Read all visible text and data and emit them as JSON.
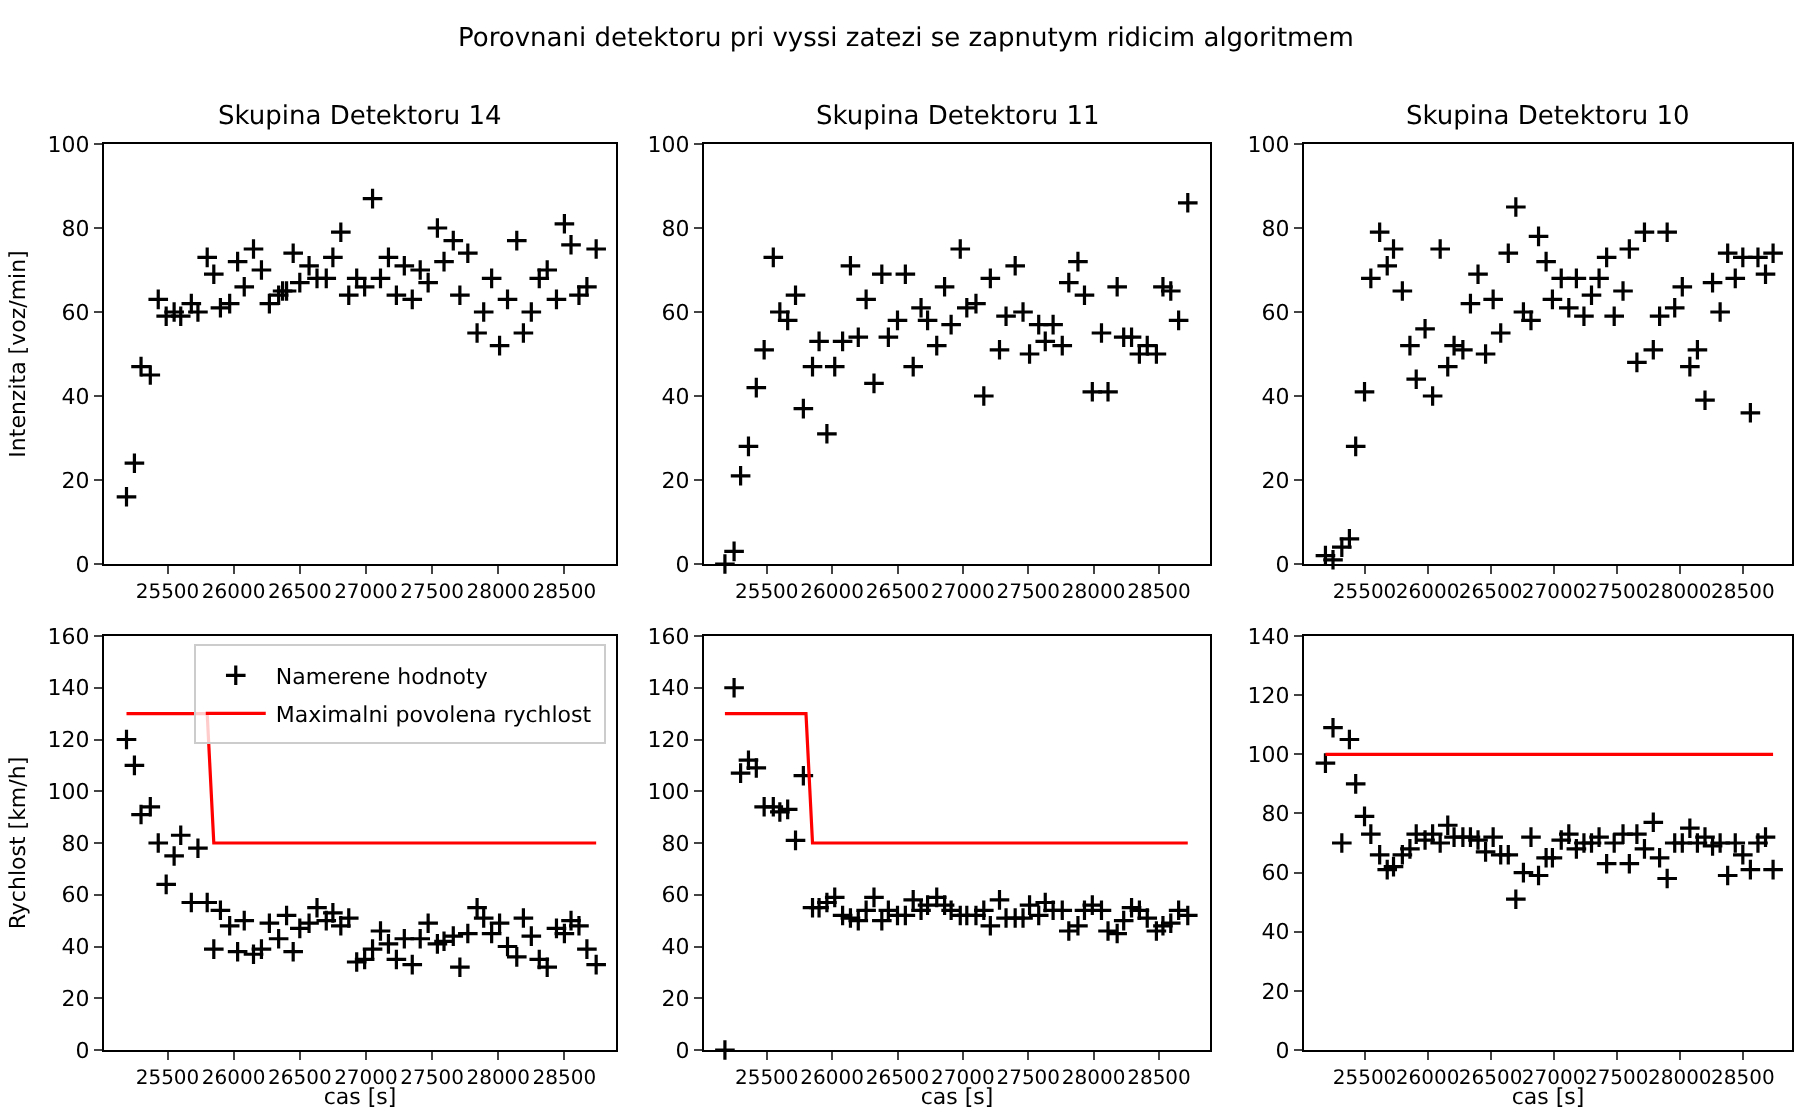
{
  "chart_data": [
    {
      "type": "scatter",
      "title": "Skupina Detektoru 14",
      "ylabel": "Intenzita [voz/min]",
      "annotations": [
        "Porovnani detektoru pri vyssi zatezi se zapnutym ridicim algoritmem"
      ],
      "xlim": [
        25020,
        28890
      ],
      "xticks": [
        25500,
        26000,
        26500,
        27000,
        27500,
        28000,
        28500
      ],
      "ylim": [
        0,
        100
      ],
      "yticks": [
        0,
        20,
        40,
        60,
        80,
        100
      ],
      "legend": false,
      "marker": "cross",
      "series": [
        {
          "color": "#000000",
          "x": [
            25190,
            25250,
            25300,
            25370,
            25430,
            25490,
            25550,
            25600,
            25680,
            25730,
            25800,
            25850,
            25900,
            25970,
            26030,
            26080,
            26150,
            26210,
            26270,
            26340,
            26370,
            26400,
            26450,
            26500,
            26570,
            26630,
            26700,
            26750,
            26810,
            26870,
            26930,
            26990,
            27050,
            27110,
            27170,
            27230,
            27290,
            27350,
            27410,
            27470,
            27540,
            27590,
            27660,
            27710,
            27770,
            27840,
            27890,
            27950,
            28010,
            28070,
            28140,
            28190,
            28250,
            28310,
            28370,
            28440,
            28500,
            28550,
            28610,
            28670,
            28740
          ],
          "values": [
            16,
            24,
            47,
            45,
            63,
            59,
            60,
            59,
            62,
            60,
            73,
            69,
            61,
            62,
            72,
            66,
            75,
            70,
            62,
            64,
            65,
            65,
            74,
            67,
            71,
            68,
            68,
            73,
            79,
            64,
            68,
            66,
            87,
            68,
            73,
            64,
            71,
            63,
            70,
            67,
            80,
            72,
            77,
            64,
            74,
            55,
            60,
            68,
            52,
            63,
            77,
            55,
            60,
            68,
            70,
            63,
            81,
            76,
            64,
            66,
            75
          ]
        }
      ]
    },
    {
      "type": "scatter",
      "title": "Skupina Detektoru 11",
      "xlim": [
        25020,
        28890
      ],
      "xticks": [
        25500,
        26000,
        26500,
        27000,
        27500,
        28000,
        28500
      ],
      "ylim": [
        0,
        100
      ],
      "yticks": [
        0,
        20,
        40,
        60,
        80,
        100
      ],
      "legend": false,
      "marker": "cross",
      "series": [
        {
          "color": "#000000",
          "x": [
            25180,
            25250,
            25300,
            25360,
            25420,
            25480,
            25550,
            25600,
            25660,
            25720,
            25780,
            25850,
            25900,
            25960,
            26020,
            26080,
            26140,
            26200,
            26260,
            26320,
            26380,
            26430,
            26500,
            26560,
            26620,
            26680,
            26730,
            26800,
            26860,
            26910,
            26980,
            27030,
            27100,
            27160,
            27210,
            27280,
            27330,
            27400,
            27460,
            27510,
            27580,
            27630,
            27690,
            27760,
            27810,
            27880,
            27930,
            27990,
            28060,
            28110,
            28180,
            28230,
            28290,
            28350,
            28410,
            28480,
            28530,
            28590,
            28650,
            28720
          ],
          "values": [
            0,
            3,
            21,
            28,
            42,
            51,
            73,
            60,
            58,
            64,
            37,
            47,
            53,
            31,
            47,
            53,
            71,
            54,
            63,
            43,
            69,
            54,
            58,
            69,
            47,
            61,
            58,
            52,
            66,
            57,
            75,
            61,
            62,
            40,
            68,
            51,
            59,
            71,
            60,
            50,
            57,
            53,
            57,
            52,
            67,
            72,
            64,
            41,
            55,
            41,
            66,
            54,
            54,
            50,
            52,
            50,
            66,
            65,
            58,
            86
          ]
        }
      ]
    },
    {
      "type": "scatter",
      "title": "Skupina Detektoru 10",
      "xlim": [
        25020,
        28890
      ],
      "xticks": [
        25500,
        26000,
        26500,
        27000,
        27500,
        28000,
        28500
      ],
      "ylim": [
        0,
        100
      ],
      "yticks": [
        0,
        20,
        40,
        60,
        80,
        100
      ],
      "legend": false,
      "marker": "cross",
      "series": [
        {
          "color": "#000000",
          "x": [
            25190,
            25250,
            25320,
            25380,
            25430,
            25500,
            25550,
            25620,
            25680,
            25730,
            25800,
            25860,
            25910,
            25980,
            26040,
            26100,
            26160,
            26210,
            26280,
            26340,
            26400,
            26460,
            26520,
            26580,
            26640,
            26700,
            26760,
            26820,
            26880,
            26940,
            26990,
            27060,
            27120,
            27180,
            27240,
            27300,
            27360,
            27420,
            27480,
            27550,
            27600,
            27660,
            27720,
            27790,
            27840,
            27900,
            27960,
            28020,
            28080,
            28140,
            28200,
            28260,
            28320,
            28380,
            28440,
            28500,
            28560,
            28620,
            28680,
            28740
          ],
          "values": [
            2,
            1,
            4,
            6,
            28,
            41,
            68,
            79,
            71,
            75,
            65,
            52,
            44,
            56,
            40,
            75,
            47,
            52,
            51,
            62,
            69,
            50,
            63,
            55,
            74,
            85,
            60,
            58,
            78,
            72,
            63,
            68,
            61,
            68,
            59,
            64,
            68,
            73,
            59,
            65,
            75,
            48,
            79,
            51,
            59,
            79,
            61,
            66,
            47,
            51,
            39,
            67,
            60,
            74,
            68,
            73,
            36,
            73,
            69,
            74
          ]
        }
      ]
    },
    {
      "type": "scatter",
      "xlabel": "cas [s]",
      "ylabel": "Rychlost [km/h]",
      "xlim": [
        25020,
        28890
      ],
      "xticks": [
        25500,
        26000,
        26500,
        27000,
        27500,
        28000,
        28500
      ],
      "ylim": [
        0,
        160
      ],
      "yticks": [
        0,
        20,
        40,
        60,
        80,
        100,
        120,
        140,
        160
      ],
      "legend": "top right",
      "marker": "cross",
      "series": [
        {
          "name": "Namerene hodnoty",
          "color": "#000000",
          "x": [
            25190,
            25250,
            25300,
            25370,
            25430,
            25490,
            25550,
            25600,
            25680,
            25730,
            25800,
            25850,
            25900,
            25970,
            26030,
            26080,
            26150,
            26210,
            26270,
            26340,
            26400,
            26450,
            26500,
            26570,
            26630,
            26700,
            26750,
            26810,
            26870,
            26930,
            26990,
            27050,
            27110,
            27170,
            27230,
            27290,
            27350,
            27410,
            27470,
            27540,
            27590,
            27660,
            27710,
            27770,
            27840,
            27890,
            27950,
            28010,
            28070,
            28140,
            28190,
            28250,
            28310,
            28370,
            28440,
            28500,
            28550,
            28610,
            28670,
            28740
          ],
          "values": [
            120,
            110,
            91,
            94,
            80,
            64,
            75,
            83,
            57,
            78,
            57,
            39,
            54,
            48,
            38,
            50,
            37,
            39,
            49,
            43,
            52,
            38,
            47,
            49,
            55,
            50,
            53,
            48,
            51,
            34,
            35,
            39,
            46,
            41,
            35,
            43,
            33,
            43,
            49,
            41,
            42,
            44,
            32,
            45,
            55,
            51,
            45,
            49,
            40,
            36,
            51,
            44,
            35,
            32,
            47,
            45,
            50,
            48,
            39,
            33
          ]
        },
        {
          "name": "Maximalni povolena rychlost",
          "type": "line",
          "marker": "none",
          "color": "#ff0000",
          "line_style": "solid",
          "x": [
            25190,
            25800,
            25850,
            28740
          ],
          "values": [
            130,
            130,
            80,
            80
          ]
        }
      ]
    },
    {
      "type": "scatter",
      "xlabel": "cas [s]",
      "xlim": [
        25020,
        28890
      ],
      "xticks": [
        25500,
        26000,
        26500,
        27000,
        27500,
        28000,
        28500
      ],
      "ylim": [
        0,
        160
      ],
      "yticks": [
        0,
        20,
        40,
        60,
        80,
        100,
        120,
        140,
        160
      ],
      "legend": false,
      "marker": "cross",
      "series": [
        {
          "color": "#000000",
          "x": [
            25180,
            25250,
            25300,
            25360,
            25420,
            25480,
            25550,
            25600,
            25660,
            25720,
            25780,
            25850,
            25900,
            25960,
            26020,
            26080,
            26140,
            26200,
            26260,
            26320,
            26380,
            26430,
            26500,
            26560,
            26620,
            26680,
            26730,
            26800,
            26860,
            26910,
            26980,
            27030,
            27100,
            27160,
            27210,
            27280,
            27330,
            27400,
            27460,
            27510,
            27580,
            27630,
            27690,
            27760,
            27810,
            27880,
            27930,
            27990,
            28060,
            28110,
            28180,
            28230,
            28290,
            28350,
            28410,
            28480,
            28530,
            28590,
            28650,
            28720
          ],
          "values": [
            0,
            140,
            107,
            112,
            109,
            94,
            94,
            92,
            93,
            81,
            106,
            55,
            55,
            57,
            59,
            52,
            51,
            50,
            54,
            59,
            50,
            54,
            52,
            52,
            58,
            54,
            56,
            59,
            56,
            54,
            52,
            52,
            52,
            54,
            48,
            58,
            51,
            51,
            51,
            56,
            52,
            57,
            54,
            54,
            46,
            48,
            54,
            56,
            54,
            46,
            45,
            50,
            55,
            54,
            51,
            46,
            48,
            49,
            54,
            52
          ]
        },
        {
          "type": "line",
          "marker": "none",
          "color": "#ff0000",
          "line_style": "solid",
          "x": [
            25180,
            25800,
            25850,
            28720
          ],
          "values": [
            130,
            130,
            80,
            80
          ]
        }
      ]
    },
    {
      "type": "scatter",
      "xlabel": "cas [s]",
      "xlim": [
        25020,
        28890
      ],
      "xticks": [
        25500,
        26000,
        26500,
        27000,
        27500,
        28000,
        28500
      ],
      "ylim": [
        0,
        140
      ],
      "yticks": [
        0,
        20,
        40,
        60,
        80,
        100,
        120,
        140
      ],
      "legend": false,
      "marker": "cross",
      "series": [
        {
          "color": "#000000",
          "x": [
            25190,
            25250,
            25320,
            25380,
            25430,
            25500,
            25550,
            25620,
            25680,
            25730,
            25800,
            25860,
            25910,
            25980,
            26040,
            26100,
            26160,
            26210,
            26280,
            26340,
            26400,
            26460,
            26520,
            26580,
            26640,
            26700,
            26760,
            26820,
            26880,
            26940,
            26990,
            27060,
            27120,
            27180,
            27240,
            27300,
            27360,
            27420,
            27480,
            27550,
            27600,
            27660,
            27720,
            27790,
            27840,
            27900,
            27960,
            28020,
            28080,
            28140,
            28200,
            28260,
            28320,
            28380,
            28440,
            28500,
            28560,
            28620,
            28680,
            28740
          ],
          "values": [
            97,
            109,
            70,
            105,
            90,
            79,
            73,
            66,
            61,
            62,
            66,
            68,
            73,
            71,
            73,
            70,
            76,
            72,
            72,
            72,
            71,
            67,
            72,
            66,
            66,
            51,
            60,
            72,
            59,
            65,
            65,
            71,
            73,
            68,
            70,
            70,
            72,
            63,
            70,
            73,
            63,
            73,
            68,
            77,
            65,
            58,
            70,
            70,
            75,
            70,
            72,
            69,
            70,
            59,
            70,
            66,
            61,
            70,
            72,
            61
          ]
        },
        {
          "type": "line",
          "marker": "none",
          "color": "#ff0000",
          "line_style": "solid",
          "x": [
            25190,
            28740
          ],
          "values": [
            100,
            100
          ]
        }
      ]
    }
  ]
}
